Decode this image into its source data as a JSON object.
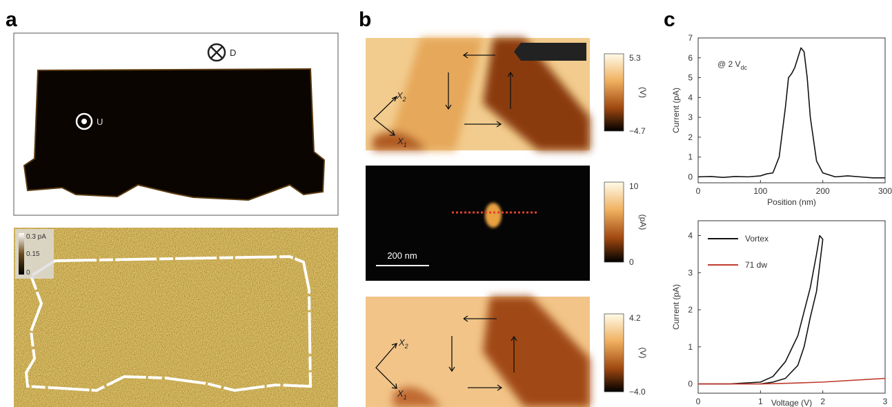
{
  "panel_a": {
    "label": "a",
    "marker_d": "D",
    "marker_u": "U",
    "colorbar": [
      "0.3 pA",
      "0.15",
      "0"
    ]
  },
  "panel_b": {
    "label": "b",
    "maps": [
      {
        "colorbar": [
          "5.3",
          "(V)",
          "−4.7"
        ],
        "axis": [
          {
            "text": "X",
            "sub": "2"
          },
          {
            "text": "X",
            "sub": "1"
          }
        ]
      },
      {
        "colorbar": [
          "10",
          "(pA)",
          "0"
        ],
        "scale_bar": "200 nm"
      },
      {
        "colorbar": [
          "4.2",
          "(V)",
          "−4.0"
        ],
        "axis": [
          {
            "text": "X",
            "sub": "2"
          },
          {
            "text": "X",
            "sub": "1"
          }
        ]
      }
    ]
  },
  "panel_c": {
    "label": "c"
  },
  "chart_data": [
    {
      "type": "line",
      "xlabel": "Position (nm)",
      "ylabel": "Current (pA)",
      "annotation": {
        "text": "@ 2 V",
        "sub": "dc"
      },
      "xlim": [
        0,
        300
      ],
      "xticks": [
        0,
        100,
        200,
        300
      ],
      "ylim": [
        -0.3,
        7
      ],
      "yticks": [
        0,
        1,
        2,
        3,
        4,
        5,
        6,
        7
      ],
      "series": [
        {
          "color": "#111111",
          "x": [
            0,
            20,
            40,
            60,
            80,
            100,
            110,
            120,
            130,
            140,
            145,
            150,
            155,
            160,
            165,
            170,
            175,
            180,
            190,
            200,
            220,
            240,
            260,
            280,
            300
          ],
          "values": [
            0,
            0.02,
            -0.03,
            0.02,
            0,
            0.05,
            0.15,
            0.2,
            1.0,
            3.5,
            5.0,
            5.2,
            5.5,
            6.0,
            6.5,
            6.3,
            5.0,
            3.0,
            0.8,
            0.2,
            0,
            0.05,
            0,
            -0.05,
            -0.05
          ]
        }
      ]
    },
    {
      "type": "line",
      "xlabel": "Voltage (V)",
      "ylabel": "Current (pA)",
      "xlim": [
        0,
        3
      ],
      "xticks": [
        0,
        1,
        2,
        3
      ],
      "ylim": [
        -0.25,
        4.4
      ],
      "yticks": [
        0,
        1,
        2,
        3,
        4
      ],
      "series": [
        {
          "name": "Vortex",
          "color": "#111111",
          "x": [
            0,
            0.5,
            1.0,
            1.2,
            1.4,
            1.6,
            1.8,
            1.9,
            1.95,
            2.0,
            1.9,
            1.8,
            1.7,
            1.6,
            1.4,
            1.2,
            1.0
          ],
          "values": [
            0,
            0,
            0.05,
            0.2,
            0.6,
            1.3,
            2.6,
            3.5,
            4.0,
            3.9,
            2.5,
            1.8,
            1.0,
            0.5,
            0.15,
            0.05,
            0
          ]
        },
        {
          "name": "71 dw",
          "color": "#c0392b",
          "x": [
            0,
            1,
            1.5,
            2,
            3
          ],
          "values": [
            0,
            0,
            0.02,
            0.05,
            0.15
          ]
        }
      ]
    }
  ]
}
